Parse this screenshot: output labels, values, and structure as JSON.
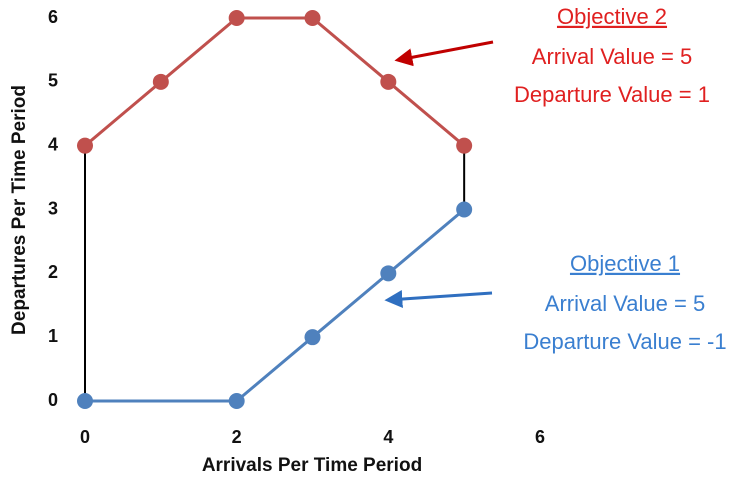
{
  "chart_data": {
    "type": "line",
    "x_label": "Arrivals Per Time Period",
    "y_label": "Departures Per Time Period",
    "xlim": [
      0,
      6
    ],
    "xticks": [
      0,
      2,
      4,
      6
    ],
    "ylim": [
      0,
      6
    ],
    "yticks": [
      0,
      1,
      2,
      3,
      4,
      5,
      6
    ],
    "series": [
      {
        "color": "#c0504d",
        "x": [
          0,
          1,
          2,
          3,
          4,
          5
        ],
        "values": [
          4,
          5,
          6,
          6,
          5,
          4
        ]
      },
      {
        "color": "#4f81bd",
        "x": [
          0,
          2,
          3,
          4,
          5
        ],
        "values": [
          0,
          0,
          1,
          2,
          3
        ]
      }
    ],
    "annotations": [
      {
        "title": "Objective 2",
        "lines": [
          "Arrival Value = 5",
          "Departure Value = 1"
        ],
        "color": "#e02020"
      },
      {
        "title": "Objective 1",
        "lines": [
          "Arrival Value = 5",
          "Departure Value = -1"
        ],
        "color": "#3a7fd0"
      }
    ]
  }
}
